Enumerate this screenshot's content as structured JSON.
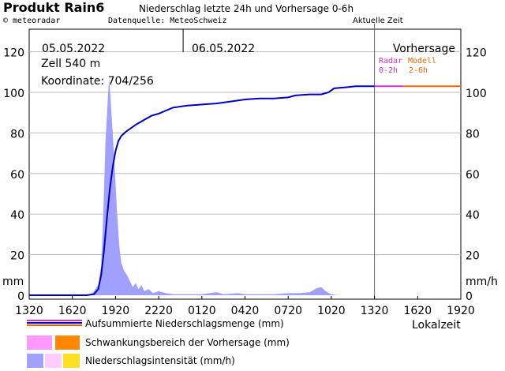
{
  "header": {
    "title": "Produkt Rain6",
    "subtitle": "Niederschlag letzte 24h und Vorhersage 0-6h",
    "copyright": "© meteoradar",
    "source": "Datenquelle: MeteoSchweiz",
    "now_label": "Aktuelle Zeit"
  },
  "info": {
    "date1": "05.05.2022",
    "date2": "06.05.2022",
    "cell": "Zell 540 m",
    "coords": "Koordinate: 704/256",
    "forecast": "Vorhersage",
    "radar_label_1": "Radar",
    "radar_label_2": "0-2h",
    "model_label_1": "Modell",
    "model_label_2": "2-6h"
  },
  "axis": {
    "left_unit": "mm",
    "right_unit": "mm/h",
    "x_unit": "Lokalzeit"
  },
  "legend": {
    "cumulative": "Aufsummierte Niederschlagsmenge (mm)",
    "range": "Schwankungsbereich der Vorhersage (mm)",
    "intensity": "Niederschlagsintensität (mm/h)"
  },
  "colors": {
    "cumulative_line": "#0000bb",
    "forecast_radar": "#cc33cc",
    "forecast_model": "#ee6600",
    "intensity_fill": "#a0a0ff",
    "range_pink": "#ff99ff",
    "range_orange": "#ff8800",
    "intensity_light": "#ffccff",
    "intensity_yellow": "#ffdd22"
  },
  "chart_data": {
    "type": "area",
    "title": "Niederschlag letzte 24h und Vorhersage 0-6h",
    "xlabel": "Lokalzeit",
    "ylabel_left": "mm",
    "ylabel_right": "mm/h",
    "xlim_hours": [
      0,
      30
    ],
    "ylim": [
      0,
      130
    ],
    "yticks": [
      0,
      20,
      40,
      60,
      80,
      100,
      120
    ],
    "xticks": [
      "1320",
      "1620",
      "1920",
      "2220",
      "0120",
      "0420",
      "0720",
      "1020",
      "1320",
      "1620",
      "1920"
    ],
    "now_hour": 24,
    "series": [
      {
        "name": "Aufsummierte Niederschlagsmenge (mm)",
        "points": [
          [
            0,
            0
          ],
          [
            4.0,
            0
          ],
          [
            4.5,
            0.5
          ],
          [
            4.8,
            3
          ],
          [
            5.0,
            10
          ],
          [
            5.2,
            22
          ],
          [
            5.4,
            38
          ],
          [
            5.6,
            52
          ],
          [
            5.8,
            63
          ],
          [
            6.0,
            71
          ],
          [
            6.2,
            76
          ],
          [
            6.4,
            78.5
          ],
          [
            6.7,
            80.5
          ],
          [
            7.0,
            82
          ],
          [
            7.4,
            84
          ],
          [
            8.0,
            86.5
          ],
          [
            8.5,
            88.5
          ],
          [
            9.0,
            89.5
          ],
          [
            9.5,
            91
          ],
          [
            10.0,
            92.5
          ],
          [
            11.0,
            93.5
          ],
          [
            12.0,
            94
          ],
          [
            13.0,
            94.5
          ],
          [
            14.0,
            95.5
          ],
          [
            15.0,
            96.5
          ],
          [
            16.0,
            97
          ],
          [
            17.0,
            97
          ],
          [
            18.0,
            97.5
          ],
          [
            18.5,
            98.5
          ],
          [
            19.5,
            99
          ],
          [
            20.3,
            99
          ],
          [
            20.8,
            100
          ],
          [
            21.2,
            102
          ],
          [
            22.0,
            102.5
          ],
          [
            22.7,
            103
          ],
          [
            24.0,
            103
          ]
        ]
      },
      {
        "name": "Radar 0-2h",
        "points": [
          [
            24,
            103
          ],
          [
            26,
            103
          ]
        ]
      },
      {
        "name": "Modell 2-6h",
        "points": [
          [
            26,
            103
          ],
          [
            30,
            103
          ]
        ]
      },
      {
        "name": "Niederschlagsintensität (mm/h)",
        "points": [
          [
            4.0,
            0
          ],
          [
            4.4,
            1
          ],
          [
            4.8,
            5
          ],
          [
            5.0,
            14
          ],
          [
            5.15,
            40
          ],
          [
            5.3,
            75
          ],
          [
            5.45,
            95
          ],
          [
            5.55,
            107
          ],
          [
            5.65,
            98
          ],
          [
            5.8,
            80
          ],
          [
            5.95,
            62
          ],
          [
            6.1,
            42
          ],
          [
            6.25,
            25
          ],
          [
            6.4,
            16
          ],
          [
            6.6,
            12
          ],
          [
            6.8,
            10
          ],
          [
            7.0,
            7
          ],
          [
            7.2,
            4
          ],
          [
            7.4,
            6
          ],
          [
            7.6,
            3
          ],
          [
            7.8,
            5
          ],
          [
            8.0,
            2
          ],
          [
            8.3,
            3
          ],
          [
            8.6,
            1
          ],
          [
            9.0,
            2
          ],
          [
            9.5,
            1
          ],
          [
            10.0,
            0.5
          ],
          [
            11.0,
            0.5
          ],
          [
            12.0,
            0.5
          ],
          [
            13.0,
            1.5
          ],
          [
            13.5,
            0.5
          ],
          [
            14.5,
            1
          ],
          [
            15.0,
            0.5
          ],
          [
            16.0,
            0.5
          ],
          [
            17.0,
            0.5
          ],
          [
            18.0,
            1
          ],
          [
            18.8,
            1
          ],
          [
            19.5,
            1.5
          ],
          [
            20.0,
            3.5
          ],
          [
            20.3,
            4
          ],
          [
            20.6,
            2
          ],
          [
            21.0,
            0.5
          ],
          [
            21.5,
            0
          ],
          [
            24.0,
            0
          ]
        ]
      }
    ]
  }
}
